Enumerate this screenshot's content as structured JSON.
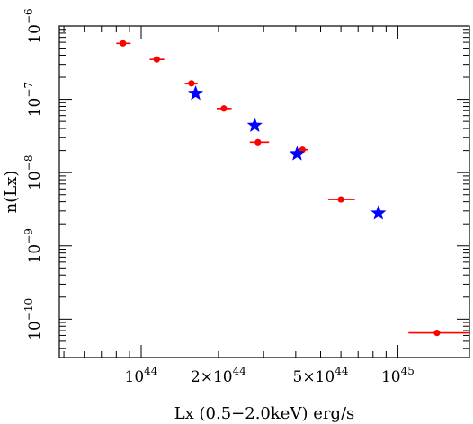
{
  "chart_data": {
    "type": "scatter",
    "title": "",
    "xlabel": "Lx (0.5−2.0keV) erg/s",
    "ylabel": "n(Lx)",
    "xscale": "log",
    "yscale": "log",
    "xlim": [
      4.8e+43,
      1.9e+45
    ],
    "ylim": [
      3e-11,
      1e-06
    ],
    "grid": false,
    "legend": "none",
    "x_tick_labels": [
      {
        "value": 1e+44,
        "mantissa": "10",
        "exp": "44"
      },
      {
        "value": 2e+44,
        "mantissa": "2×10",
        "exp": "44"
      },
      {
        "value": 5e+44,
        "mantissa": "5×10",
        "exp": "44"
      },
      {
        "value": 1e+45,
        "mantissa": "10",
        "exp": "45"
      }
    ],
    "y_tick_labels": [
      {
        "value": 1e-06,
        "mantissa": "10",
        "exp": "−6"
      },
      {
        "value": 1e-07,
        "mantissa": "10",
        "exp": "−7"
      },
      {
        "value": 1e-08,
        "mantissa": "10",
        "exp": "−8"
      },
      {
        "value": 1e-09,
        "mantissa": "10",
        "exp": "−9"
      },
      {
        "value": 1e-10,
        "mantissa": "10",
        "exp": "−10"
      }
    ],
    "series": [
      {
        "marker": "circle",
        "color": "#ff0000",
        "points": [
          {
            "x": 8.5e+43,
            "y": 5.8e-07,
            "xerr": [
              8e+43,
              9.1e+43
            ]
          },
          {
            "x": 1.15e+44,
            "y": 3.5e-07,
            "xerr": [
              1.08e+44,
              1.23e+44
            ]
          },
          {
            "x": 1.57e+44,
            "y": 1.65e-07,
            "xerr": [
              1.48e+44,
              1.66e+44
            ]
          },
          {
            "x": 2.1e+44,
            "y": 7.5e-08,
            "xerr": [
              1.97e+44,
              2.25e+44
            ]
          },
          {
            "x": 2.85e+44,
            "y": 2.6e-08,
            "xerr": [
              2.65e+44,
              3.15e+44
            ]
          },
          {
            "x": 4.25e+44,
            "y": 2.05e-08,
            "xerr": [
              4.05e+44,
              4.45e+44
            ]
          },
          {
            "x": 6e+44,
            "y": 4.3e-09,
            "xerr": [
              5.35e+44,
              6.8e+44
            ]
          },
          {
            "x": 1.42e+45,
            "y": 6.5e-11,
            "xerr": [
              1.1e+45,
              1.9e+45
            ]
          }
        ]
      },
      {
        "marker": "star",
        "color": "#0000ff",
        "points": [
          {
            "x": 1.63e+44,
            "y": 1.2e-07
          },
          {
            "x": 2.77e+44,
            "y": 4.4e-08
          },
          {
            "x": 4.05e+44,
            "y": 1.8e-08
          },
          {
            "x": 8.4e+44,
            "y": 2.8e-09
          }
        ]
      }
    ]
  }
}
